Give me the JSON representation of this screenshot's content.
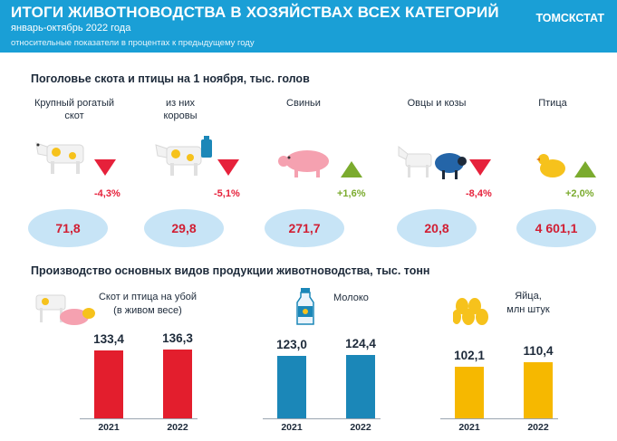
{
  "header": {
    "title": "ИТОГИ ЖИВОТНОВОДСТВА  В ХОЗЯЙСТВАХ ВСЕХ КАТЕГОРИЙ",
    "subtitle": "январь-октябрь 2022 года",
    "note": "относительные показатели в процентах к предыдущему году",
    "brand": "ТОМСКСТАТ"
  },
  "livestock": {
    "title": "Поголовье скота и птицы на 1 ноября, тыс. голов",
    "items": [
      {
        "label_line1": "Крупный рогатый",
        "label_line2": "скот",
        "change": "-4,3%",
        "direction": "down",
        "value": "71,8",
        "icon": "cow-icon"
      },
      {
        "label_line1": "из них",
        "label_line2": "коровы",
        "change": "-5,1%",
        "direction": "down",
        "value": "29,8",
        "icon": "dairy-cow-icon"
      },
      {
        "label_line1": "Свиньи",
        "label_line2": "",
        "change": "+1,6%",
        "direction": "up",
        "value": "271,7",
        "icon": "pig-icon"
      },
      {
        "label_line1": "Овцы и козы",
        "label_line2": "",
        "change": "-8,4%",
        "direction": "down",
        "value": "20,8",
        "icon": "sheep-goat-icon"
      },
      {
        "label_line1": "Птица",
        "label_line2": "",
        "change": "+2,0%",
        "direction": "up",
        "value": "4 601,1",
        "icon": "bird-icon"
      }
    ]
  },
  "production": {
    "title": "Производство основных видов продукции животноводства, тыс. тонн",
    "groups": [
      {
        "label_line1": "Скот и птица на убой",
        "label_line2": "(в живом весе)",
        "color": "#e31e2d",
        "years": [
          "2021",
          "2022"
        ],
        "values": [
          "133,4",
          "136,3"
        ],
        "num": [
          133.4,
          136.3
        ],
        "icon": "livestock-icon"
      },
      {
        "label_line1": "Молоко",
        "label_line2": "",
        "color": "#1b87b8",
        "years": [
          "2021",
          "2022"
        ],
        "values": [
          "123,0",
          "124,4"
        ],
        "num": [
          123.0,
          124.4
        ],
        "icon": "milk-bottle-icon"
      },
      {
        "label_line1": "Яйца,",
        "label_line2": "млн штук",
        "color": "#f6b800",
        "years": [
          "2021",
          "2022"
        ],
        "values": [
          "102,1",
          "110,4"
        ],
        "num": [
          102.1,
          110.4
        ],
        "icon": "eggs-icon"
      }
    ]
  },
  "colors": {
    "header": "#1a9fd6",
    "down": "#e6213b",
    "up": "#7bab2e",
    "ellipse": "#c7e4f6",
    "value": "#d11e33"
  }
}
